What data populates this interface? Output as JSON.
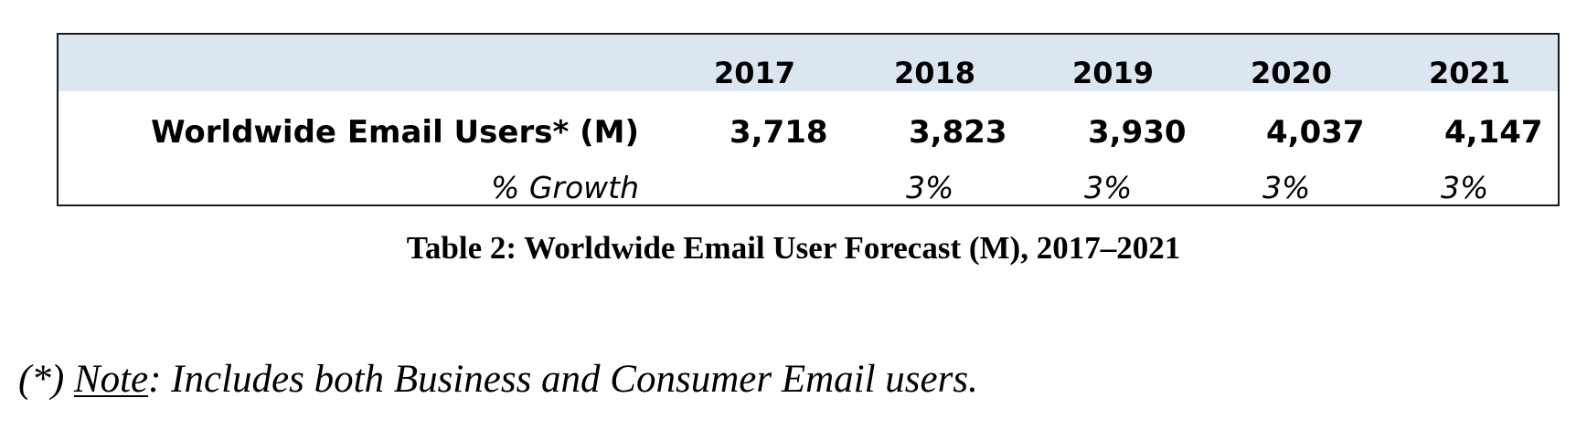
{
  "table": {
    "years": [
      "2017",
      "2018",
      "2019",
      "2020",
      "2021"
    ],
    "row_label": "Worldwide Email Users* (M)",
    "values": [
      "3,718",
      "3,823",
      "3,930",
      "4,037",
      "4,147"
    ],
    "growth_label": "% Growth",
    "growth": [
      "",
      "3%",
      "3%",
      "3%",
      "3%"
    ]
  },
  "caption": "Table 2: Worldwide Email User Forecast (M), 2017–2021",
  "note": {
    "prefix": "(*) ",
    "keyword": "Note",
    "text": ": Includes both Business and Consumer Email users."
  },
  "colors": {
    "header_band": "#dce6f1",
    "border": "#1a1a1a",
    "text": "#000000"
  }
}
